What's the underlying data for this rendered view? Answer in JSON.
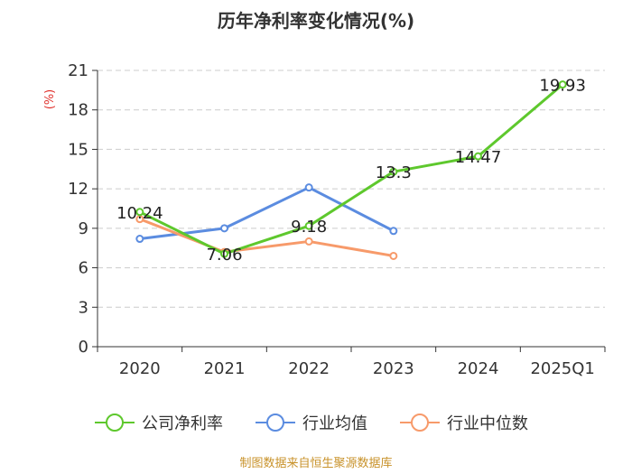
{
  "chart_data": {
    "type": "line",
    "title": "历年净利率变化情况(%)",
    "ylabel": "(%)",
    "categories": [
      "2020",
      "2021",
      "2022",
      "2023",
      "2024",
      "2025Q1"
    ],
    "ylim": [
      0,
      21
    ],
    "yticks": [
      0,
      3,
      6,
      9,
      12,
      15,
      18,
      21
    ],
    "grid": true,
    "legend_position": "bottom",
    "series": [
      {
        "name": "公司净利率",
        "color": "#5ec82d",
        "values": [
          10.24,
          7.06,
          9.18,
          13.3,
          14.47,
          19.93
        ],
        "labels": [
          "10.24",
          "7.06",
          "9.18",
          "13.3",
          "14.47",
          "19.93"
        ]
      },
      {
        "name": "行业均值",
        "color": "#5b8ce0",
        "values": [
          8.2,
          9.0,
          12.1,
          8.8,
          null,
          null
        ]
      },
      {
        "name": "行业中位数",
        "color": "#f79a6a",
        "values": [
          9.7,
          7.2,
          8.0,
          6.9,
          null,
          null
        ]
      }
    ],
    "source": "制图数据来自恒生聚源数据库"
  }
}
